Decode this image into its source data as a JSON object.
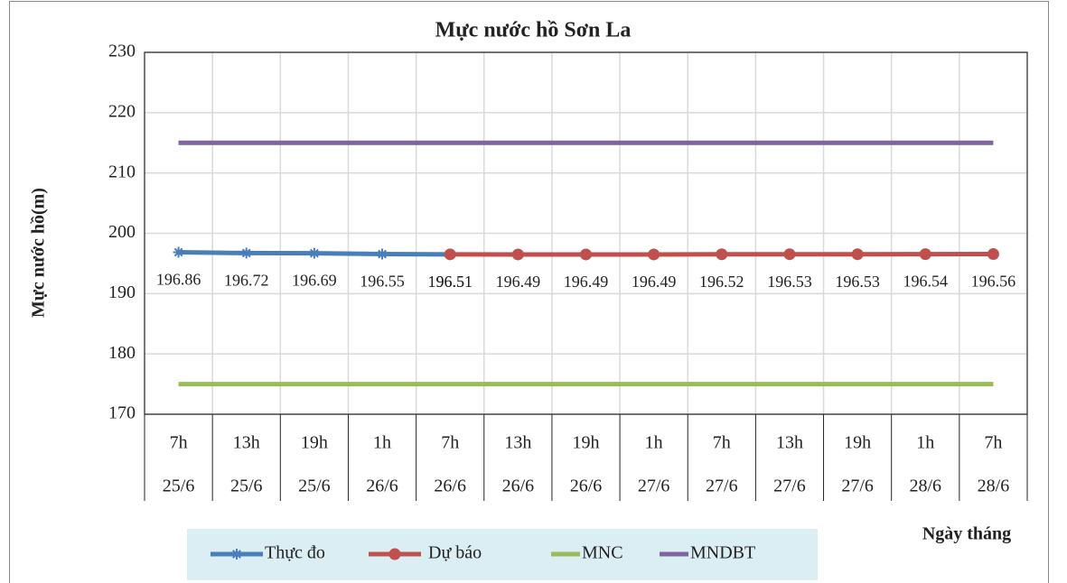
{
  "chart_data": {
    "type": "line",
    "title": "Mực nước hồ Sơn La",
    "y_label": "Mực nước hồ(m)",
    "x_label": "Ngày tháng",
    "categories": [
      [
        "7h",
        "25/6"
      ],
      [
        "13h",
        "25/6"
      ],
      [
        "19h",
        "25/6"
      ],
      [
        "1h",
        "26/6"
      ],
      [
        "7h",
        "26/6"
      ],
      [
        "13h",
        "26/6"
      ],
      [
        "19h",
        "26/6"
      ],
      [
        "1h",
        "27/6"
      ],
      [
        "7h",
        "27/6"
      ],
      [
        "13h",
        "27/6"
      ],
      [
        "19h",
        "27/6"
      ],
      [
        "1h",
        "28/6"
      ],
      [
        "7h",
        "28/6"
      ]
    ],
    "series": [
      {
        "name": "Thực đo",
        "color": "#4a7ebb",
        "marker": "star",
        "data_labels": true,
        "values": [
          196.86,
          196.72,
          196.69,
          196.55,
          196.51,
          null,
          null,
          null,
          null,
          null,
          null,
          null,
          null
        ]
      },
      {
        "name": "Dự báo",
        "color": "#c0504d",
        "marker": "circle",
        "data_labels": true,
        "values": [
          null,
          null,
          null,
          null,
          196.51,
          196.49,
          196.49,
          196.49,
          196.52,
          196.53,
          196.53,
          196.54,
          196.56
        ]
      },
      {
        "name": "MNC",
        "color": "#9bbb59",
        "marker": "none",
        "data_labels": false,
        "values": [
          175,
          175,
          175,
          175,
          175,
          175,
          175,
          175,
          175,
          175,
          175,
          175,
          175
        ]
      },
      {
        "name": "MNDBT",
        "color": "#8064a2",
        "marker": "none",
        "data_labels": false,
        "values": [
          215,
          215,
          215,
          215,
          215,
          215,
          215,
          215,
          215,
          215,
          215,
          215,
          215
        ]
      }
    ],
    "ylim": [
      170,
      230
    ],
    "yticks": [
      170,
      180,
      190,
      200,
      210,
      220,
      230
    ],
    "grid": true,
    "legend": "bottom"
  }
}
